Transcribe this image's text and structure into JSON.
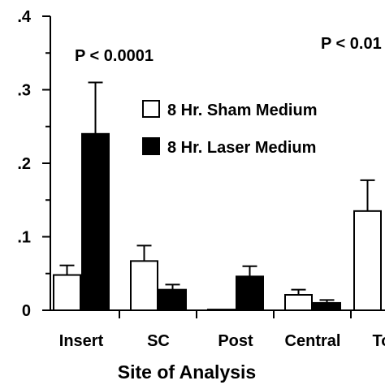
{
  "chart_data": {
    "type": "bar",
    "xlabel": "Site of Analysis",
    "ylabel": "",
    "ylim": [
      0,
      0.4
    ],
    "yticks": [
      {
        "value": 0,
        "label": "0"
      },
      {
        "value": 0.1,
        "label": ".1"
      },
      {
        "value": 0.2,
        "label": ".2"
      },
      {
        "value": 0.3,
        "label": ".3"
      },
      {
        "value": 0.4,
        "label": ".4"
      }
    ],
    "categories": [
      "Insert",
      "SC",
      "Post",
      "Central",
      "Toe"
    ],
    "category_labels": [
      "Insert",
      "SC",
      "Post",
      "Central",
      "To"
    ],
    "series": [
      {
        "name": "8 Hr. Sham Medium",
        "fill": "#ffffff",
        "values": [
          0.048,
          0.067,
          0.001,
          0.021,
          0.135
        ],
        "errors": [
          0.013,
          0.021,
          0.0,
          0.007,
          0.042
        ]
      },
      {
        "name": "8 Hr. Laser Medium",
        "fill": "#000000",
        "values": [
          0.24,
          0.028,
          0.046,
          0.01,
          null
        ],
        "errors": [
          0.07,
          0.007,
          0.014,
          0.004,
          null
        ]
      }
    ],
    "annotations": [
      {
        "text": "P < 0.0001",
        "category": "Insert"
      },
      {
        "text": "P < 0.01",
        "category": "Toe"
      }
    ],
    "legend": "center-right",
    "grid": false
  }
}
